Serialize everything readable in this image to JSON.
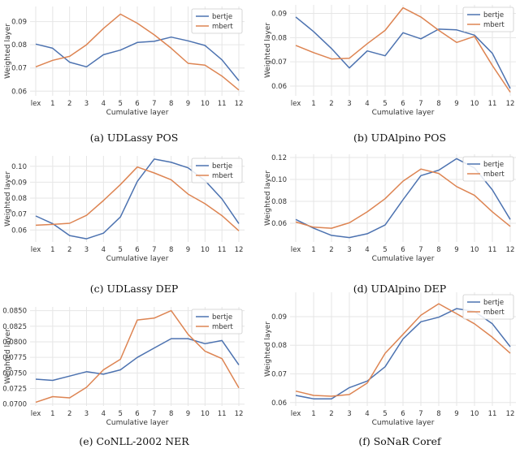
{
  "x_categories": [
    "lex",
    "1",
    "2",
    "3",
    "4",
    "5",
    "6",
    "7",
    "8",
    "9",
    "10",
    "11",
    "12"
  ],
  "colors": {
    "bertje": "#4c72b0",
    "mbert": "#dd8452",
    "grid": "#e6e6e6",
    "axis_text": "#333333"
  },
  "chart_data": [
    {
      "type": "line",
      "caption": "(a) UDLassy POS",
      "xlabel": "Cumulative layer",
      "ylabel": "Weighted layer",
      "ylim": [
        0.058,
        0.0965
      ],
      "yticks": [
        0.06,
        0.07,
        0.08,
        0.09
      ],
      "ytick_labels": [
        "0.06",
        "0.07",
        "0.08",
        "0.09"
      ],
      "legend": [
        "bertje",
        "mbert"
      ],
      "series": [
        {
          "name": "bertje",
          "values": [
            0.0803,
            0.0785,
            0.0725,
            0.0705,
            0.0757,
            0.0777,
            0.081,
            0.0815,
            0.0833,
            0.0817,
            0.0797,
            0.0735,
            0.0645
          ]
        },
        {
          "name": "mbert",
          "values": [
            0.0705,
            0.0733,
            0.075,
            0.08,
            0.087,
            0.0932,
            0.0893,
            0.0843,
            0.0785,
            0.072,
            0.0712,
            0.0665,
            0.0605
          ]
        }
      ]
    },
    {
      "type": "line",
      "caption": "(b) UDAlpino POS",
      "xlabel": "Cumulative layer",
      "ylabel": "Weighted layer",
      "ylim": [
        0.056,
        0.0935
      ],
      "yticks": [
        0.06,
        0.07,
        0.08,
        0.09
      ],
      "ytick_labels": [
        "0.06",
        "0.07",
        "0.08",
        "0.09"
      ],
      "legend": [
        "bertje",
        "mbert"
      ],
      "series": [
        {
          "name": "bertje",
          "values": [
            0.0885,
            0.0825,
            0.0755,
            0.0675,
            0.0745,
            0.0725,
            0.082,
            0.0795,
            0.0835,
            0.0832,
            0.081,
            0.0735,
            0.059
          ]
        },
        {
          "name": "mbert",
          "values": [
            0.0768,
            0.0738,
            0.0712,
            0.0715,
            0.0775,
            0.083,
            0.0923,
            0.0885,
            0.083,
            0.078,
            0.0805,
            0.0685,
            0.0575
          ]
        }
      ]
    },
    {
      "type": "line",
      "caption": "(c) UDLassy DEP",
      "xlabel": "Cumulative layer",
      "ylabel": "Weighted layer",
      "ylim": [
        0.0525,
        0.1065
      ],
      "yticks": [
        0.06,
        0.07,
        0.08,
        0.09,
        0.1
      ],
      "ytick_labels": [
        "0.06",
        "0.07",
        "0.08",
        "0.09",
        "0.10"
      ],
      "legend": [
        "bertje",
        "mbert"
      ],
      "series": [
        {
          "name": "bertje",
          "values": [
            0.0688,
            0.064,
            0.0565,
            0.0545,
            0.058,
            0.0682,
            0.0905,
            0.1045,
            0.1025,
            0.099,
            0.091,
            0.0795,
            0.064
          ]
        },
        {
          "name": "mbert",
          "values": [
            0.063,
            0.0635,
            0.0642,
            0.0692,
            0.0785,
            0.0885,
            0.0995,
            0.0958,
            0.0915,
            0.0825,
            0.0765,
            0.069,
            0.0595
          ]
        }
      ]
    },
    {
      "type": "line",
      "caption": "(d) UDAlpino DEP",
      "xlabel": "Cumulative layer",
      "ylabel": "Weighted layer",
      "ylim": [
        0.043,
        0.123
      ],
      "yticks": [
        0.06,
        0.08,
        0.1,
        0.12
      ],
      "ytick_labels": [
        "0.06",
        "0.08",
        "0.10",
        "0.12"
      ],
      "legend": [
        "bertje",
        "mbert"
      ],
      "series": [
        {
          "name": "bertje",
          "values": [
            0.0635,
            0.0555,
            0.049,
            0.047,
            0.0505,
            0.0585,
            0.0815,
            0.1035,
            0.1085,
            0.119,
            0.1105,
            0.0905,
            0.0635
          ]
        },
        {
          "name": "mbert",
          "values": [
            0.0612,
            0.0565,
            0.0555,
            0.0605,
            0.0705,
            0.0825,
            0.0985,
            0.1095,
            0.1055,
            0.0935,
            0.0855,
            0.0705,
            0.0572
          ]
        }
      ]
    },
    {
      "type": "line",
      "caption": "(e) CoNLL-2002 NER",
      "xlabel": "Cumulative layer",
      "ylabel": "Weighted layer",
      "ylim": [
        0.0697,
        0.0856
      ],
      "yticks": [
        0.07,
        0.0725,
        0.075,
        0.0775,
        0.08,
        0.0825,
        0.085
      ],
      "ytick_labels": [
        "0.0700",
        "0.0725",
        "0.0750",
        "0.0775",
        "0.0800",
        "0.0825",
        "0.0850"
      ],
      "legend": [
        "bertje",
        "mbert"
      ],
      "series": [
        {
          "name": "bertje",
          "values": [
            0.074,
            0.0738,
            0.0745,
            0.0752,
            0.0748,
            0.0755,
            0.0775,
            0.079,
            0.0805,
            0.0805,
            0.0797,
            0.0802,
            0.0763
          ]
        },
        {
          "name": "mbert",
          "values": [
            0.0703,
            0.0712,
            0.071,
            0.0727,
            0.0755,
            0.0772,
            0.0835,
            0.0838,
            0.085,
            0.0812,
            0.0785,
            0.0773,
            0.0726
          ]
        }
      ]
    },
    {
      "type": "line",
      "caption": "(f) SoNaR Coref",
      "xlabel": "Cumulative layer",
      "ylabel": "Weighted layer",
      "ylim": [
        0.0588,
        0.0985
      ],
      "yticks": [
        0.06,
        0.07,
        0.08,
        0.09
      ],
      "ytick_labels": [
        "0.06",
        "0.07",
        "0.08",
        "0.09"
      ],
      "legend": [
        "bertje",
        "mbert"
      ],
      "series": [
        {
          "name": "bertje",
          "values": [
            0.0625,
            0.0613,
            0.0613,
            0.0652,
            0.0675,
            0.0725,
            0.0822,
            0.0882,
            0.0898,
            0.0928,
            0.0918,
            0.0875,
            0.0795
          ]
        },
        {
          "name": "mbert",
          "values": [
            0.064,
            0.0625,
            0.0622,
            0.0628,
            0.0668,
            0.0772,
            0.0838,
            0.0905,
            0.0945,
            0.091,
            0.0875,
            0.0828,
            0.0772
          ]
        }
      ]
    }
  ]
}
